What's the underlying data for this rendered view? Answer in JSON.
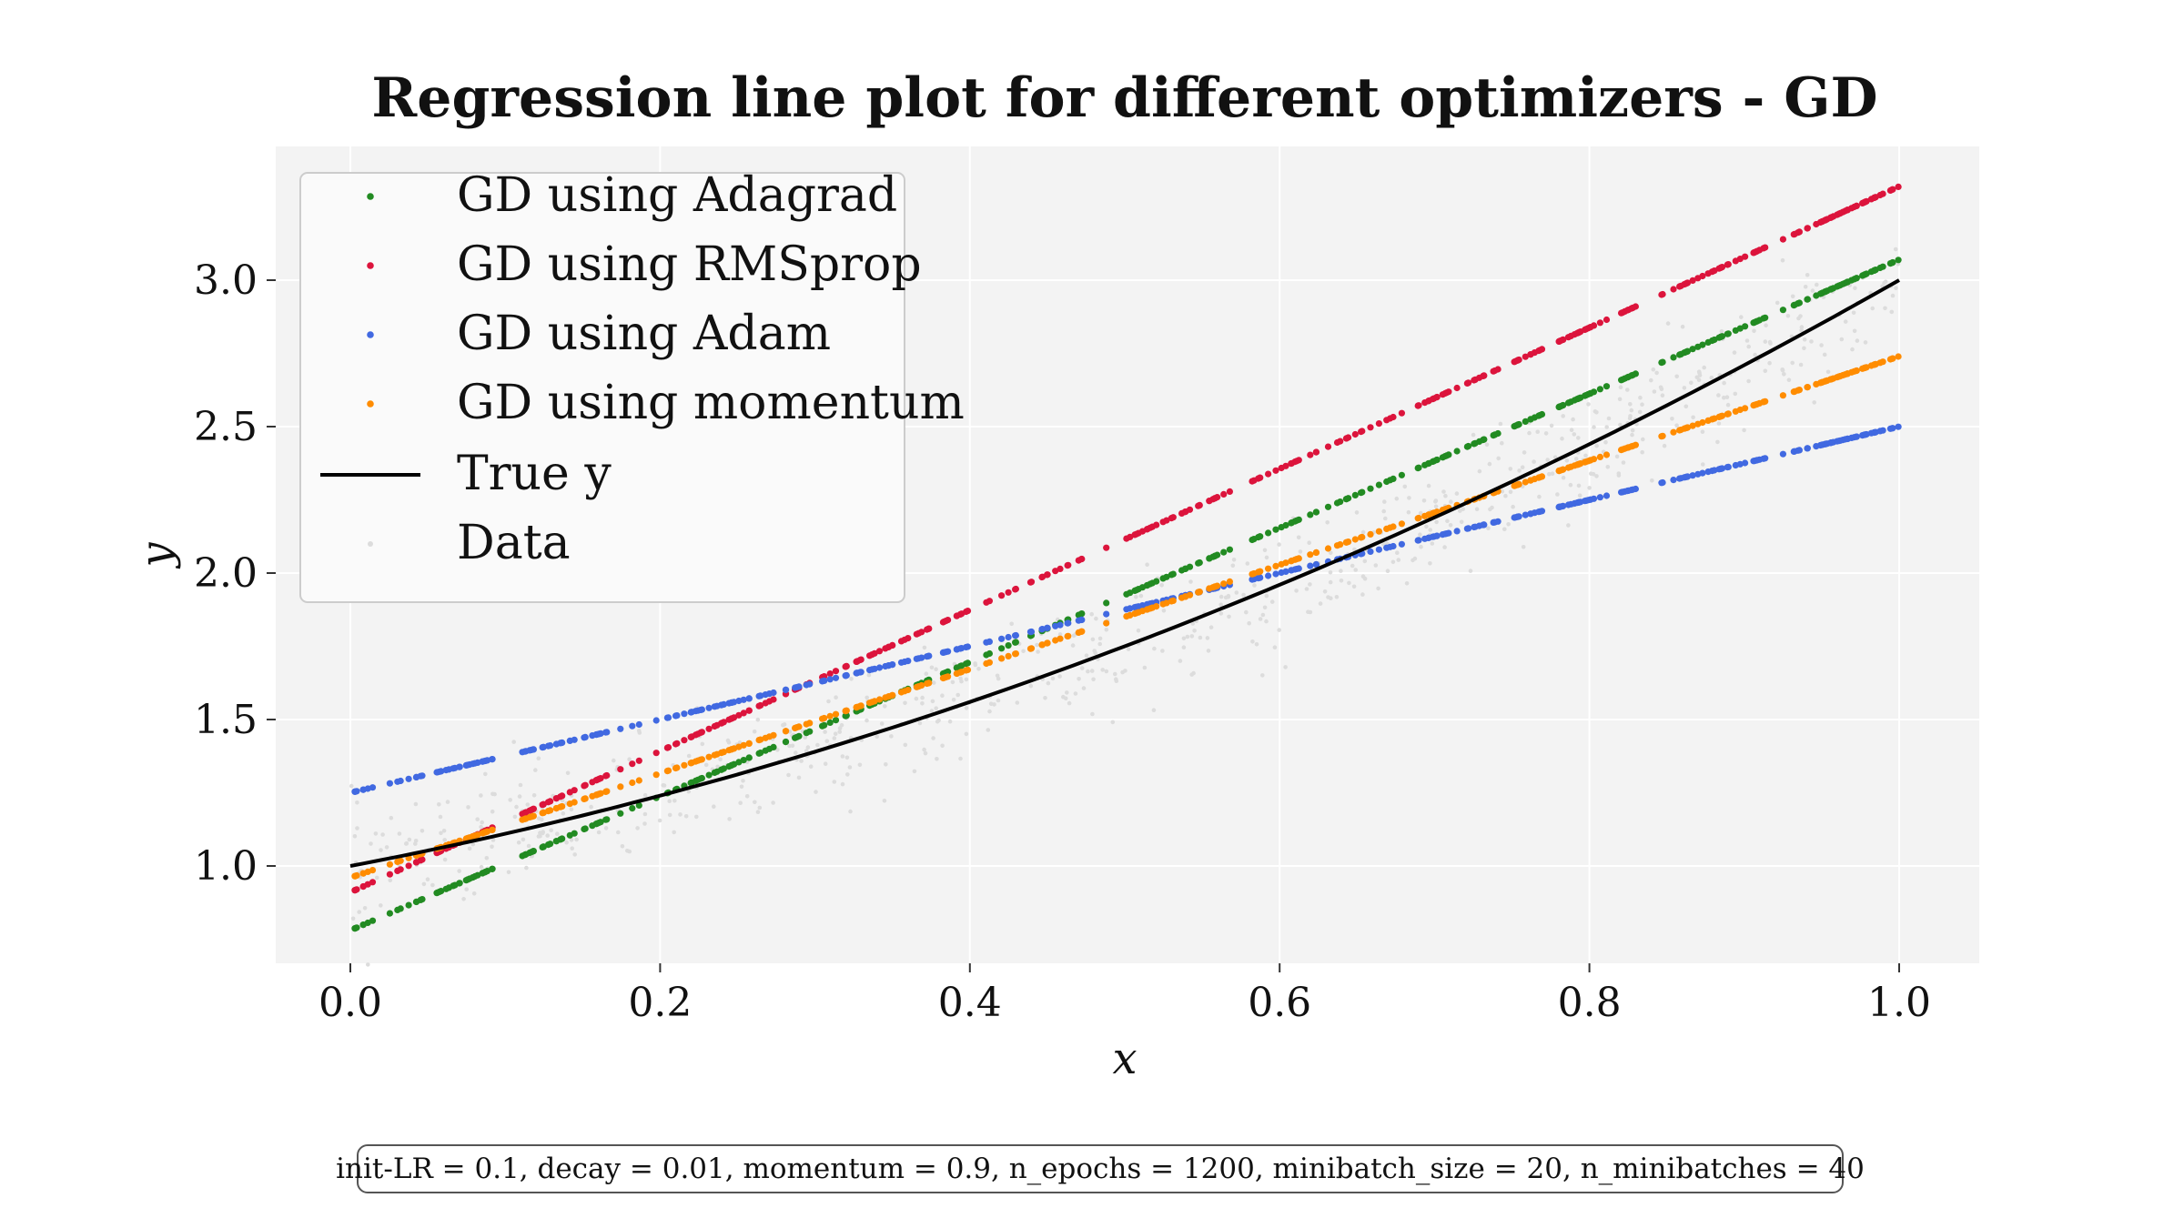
{
  "chart_data": {
    "type": "scatter",
    "title": "Regression line plot for different optimizers - GD",
    "xlabel": "x",
    "ylabel": "y",
    "xlim": [
      -0.05,
      1.05
    ],
    "ylim": [
      0.67,
      3.42
    ],
    "x_ticks": [
      "0.0",
      "0.2",
      "0.4",
      "0.6",
      "0.8",
      "1.0"
    ],
    "y_ticks": [
      "1.0",
      "1.5",
      "2.0",
      "2.5",
      "3.0"
    ],
    "grid": true,
    "legend_position": "top-left",
    "series": [
      {
        "name": "GD using Adagrad",
        "kind": "points",
        "color": "#228b22",
        "intercept": 0.78,
        "slope": 2.29
      },
      {
        "name": "GD using RMSprop",
        "kind": "points",
        "color": "#dc143c",
        "intercept": 0.91,
        "slope": 2.41
      },
      {
        "name": "GD using Adam",
        "kind": "points",
        "color": "#4169e1",
        "intercept": 1.25,
        "slope": 1.25
      },
      {
        "name": "GD using momentum",
        "kind": "points",
        "color": "#ff8c00",
        "intercept": 0.96,
        "slope": 1.78
      },
      {
        "name": "True y",
        "kind": "line",
        "color": "#000000",
        "formula": "1 + x + x^2"
      },
      {
        "name": "Data",
        "kind": "scatter",
        "color": "#dcdcdc",
        "noise_sd": 0.1
      }
    ]
  },
  "footer": {
    "params_text": "init-LR = 0.1, decay = 0.01, momentum = 0.9, n_epochs = 1200, minibatch_size = 20, n_minibatches = 40"
  }
}
